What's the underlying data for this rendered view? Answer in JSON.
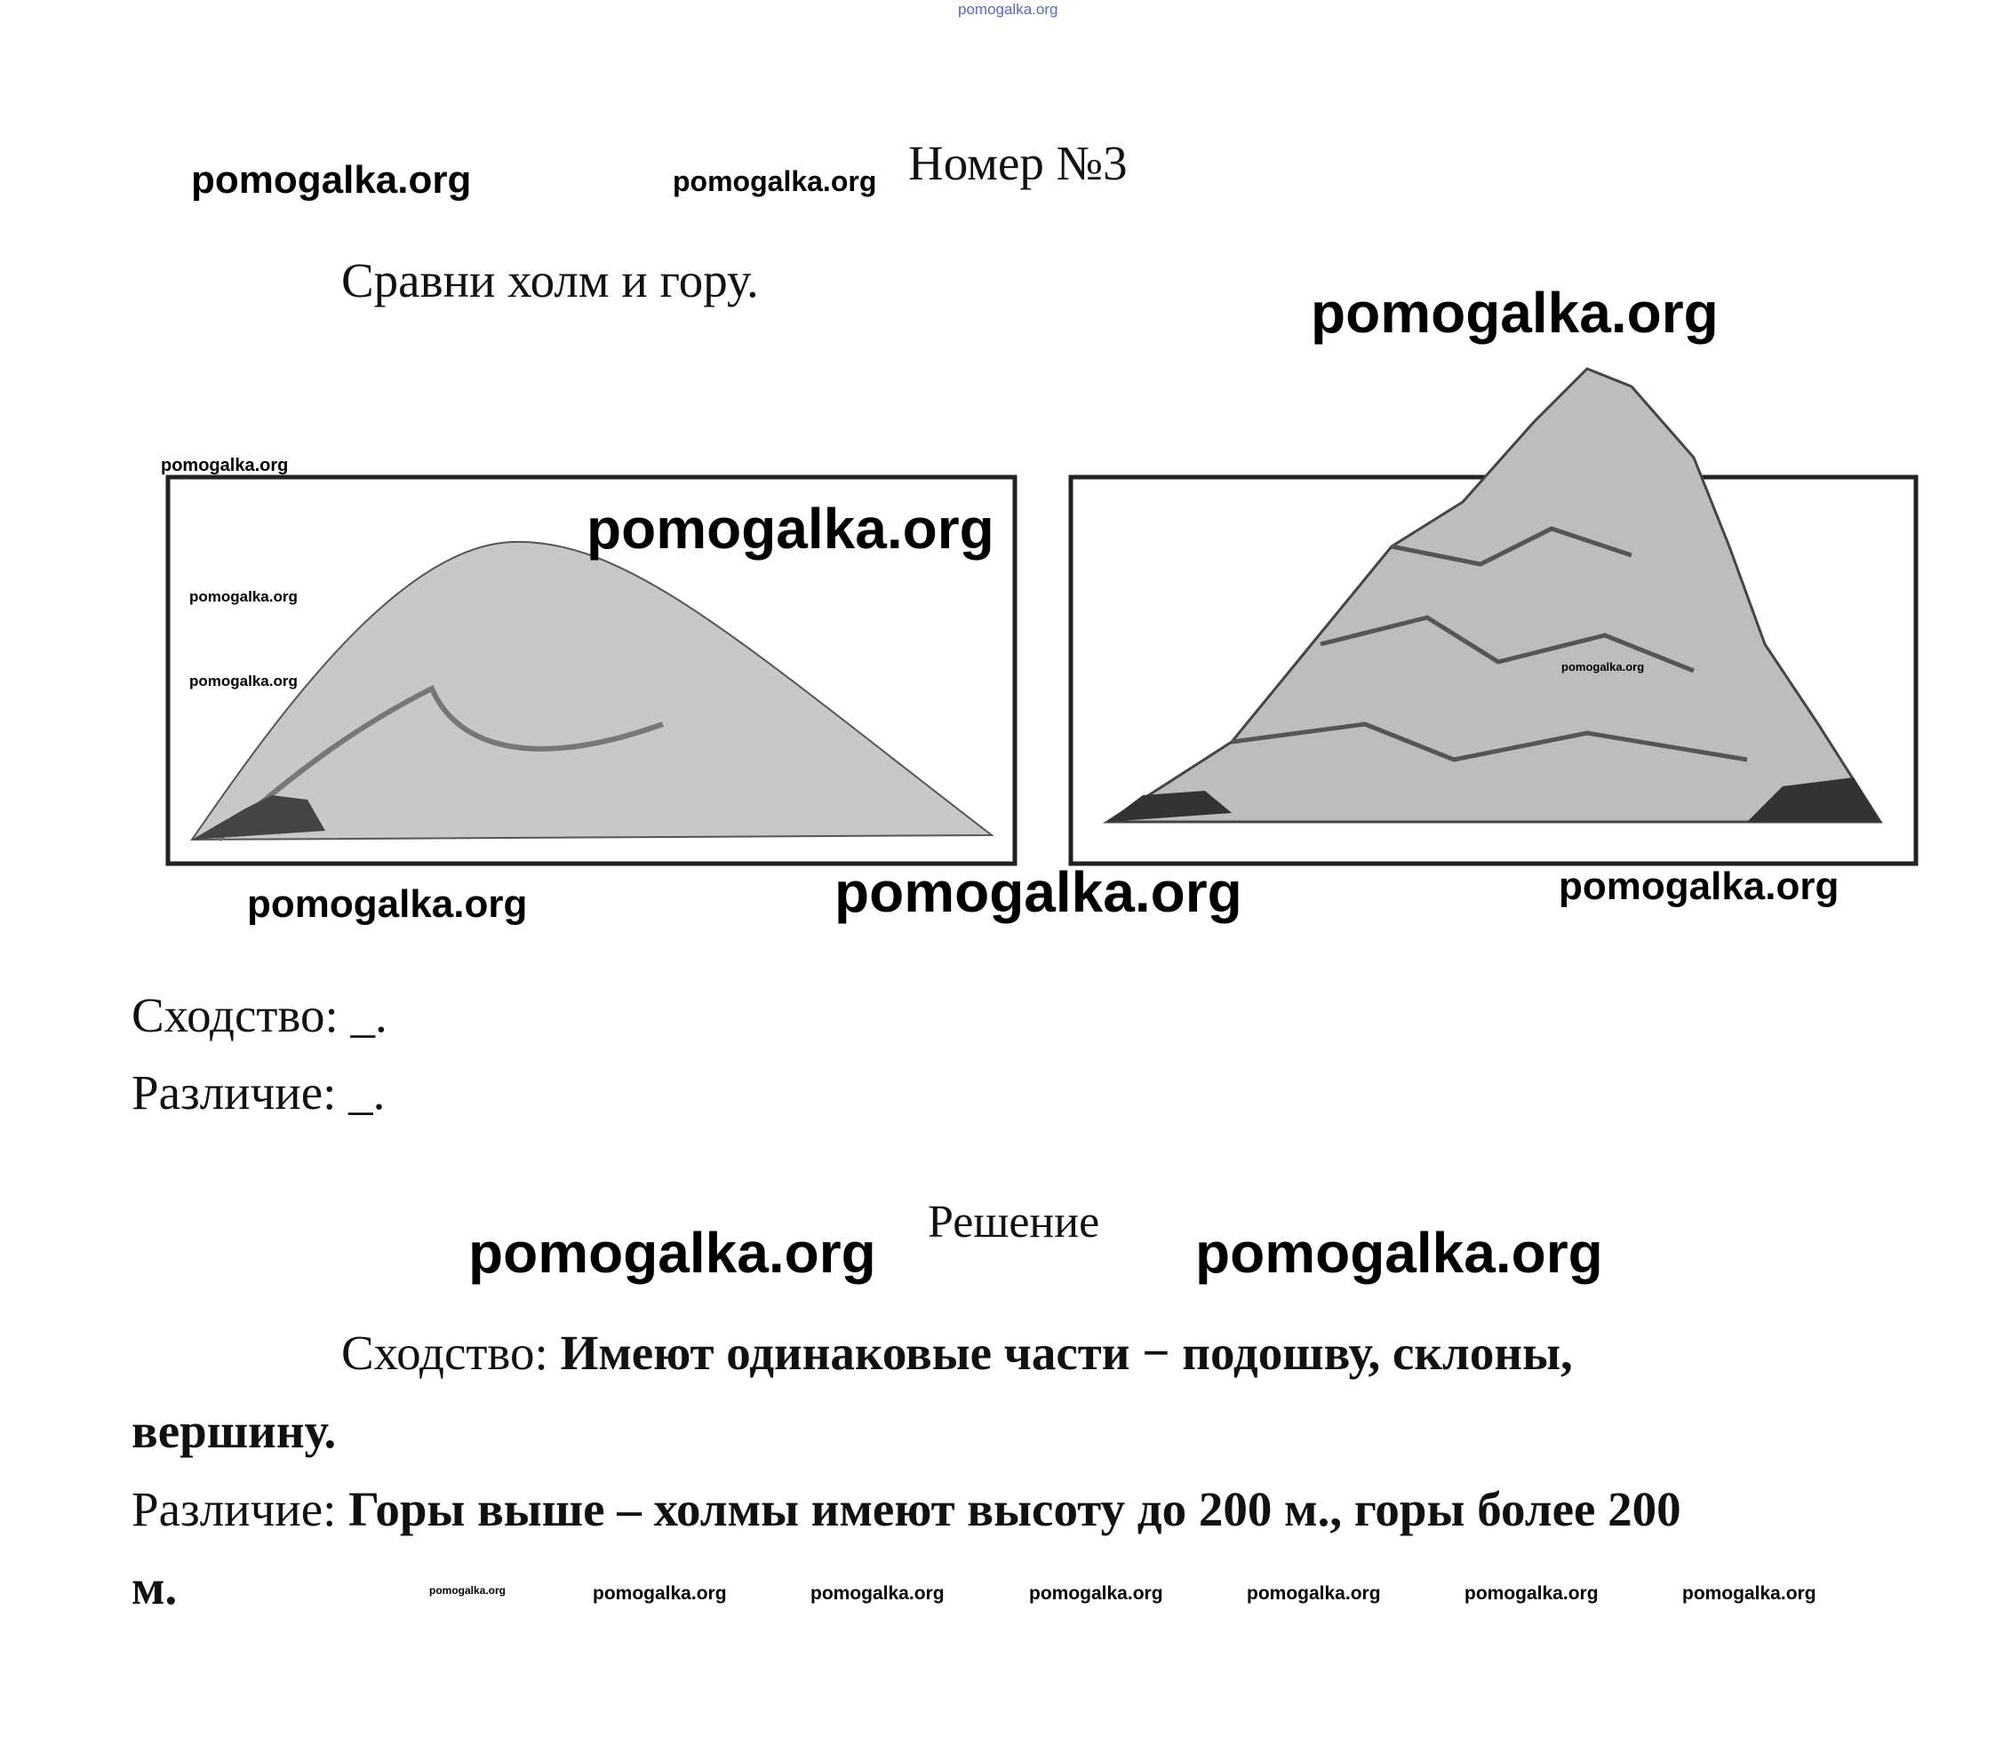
{
  "header": {
    "title": "Номер №3"
  },
  "task": "Сравни холм и гору.",
  "blanks": [
    "Сходство: _.",
    "Различие: _."
  ],
  "solution": {
    "title": "Решение",
    "answers": [
      {
        "label": "Сходство:",
        "text": "Имеют одинаковые части − подошву, склоны, вершину."
      },
      {
        "label": "Различие:",
        "text": "Горы выше – холмы имеют высоту до 200 м., горы более 200 м."
      }
    ]
  },
  "watermarks": [
    "pomogalka.org",
    "pomogalka.org",
    "pomogalka.org",
    "pomogalka.org",
    "pomogalka.org",
    "pomogalka.org",
    "pomogalka.org",
    "pomogalka.org",
    "pomogalka.org",
    "pomogalka.org",
    "pomogalka.org",
    "pomogalka.org",
    "pomogalka.org",
    "pomogalka.org",
    "pomogalka.org",
    "pomogalka.org",
    "pomogalka.org",
    "pomogalka.org",
    "pomogalka.org",
    "pomogalka.org",
    "pomogalka.org"
  ]
}
